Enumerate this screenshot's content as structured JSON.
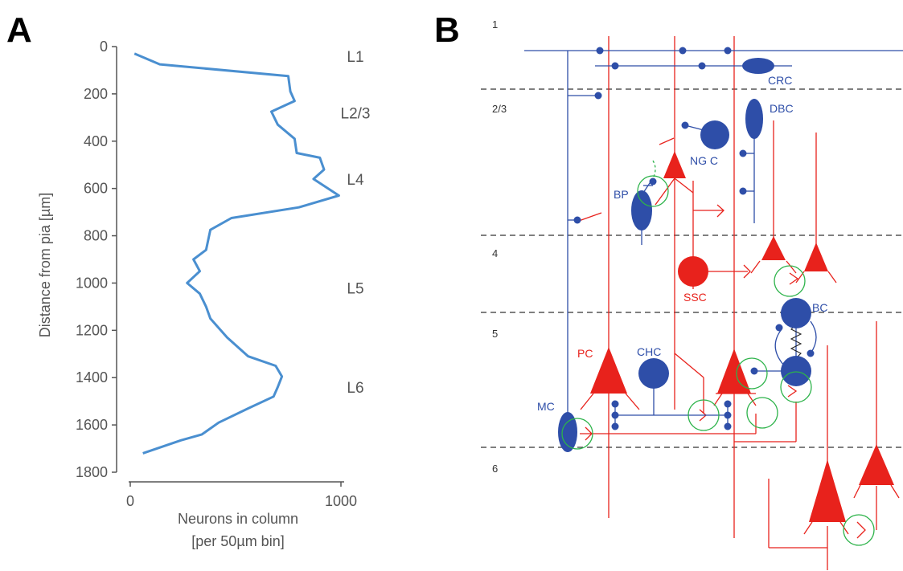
{
  "panel_a": {
    "letter": "A",
    "ylabel": "Distance from pia [µm]",
    "xlabel_line1": "Neurons in column",
    "xlabel_line2": "[per 50µm bin]",
    "layer_labels": [
      {
        "text": "L1",
        "depth": 40
      },
      {
        "text": "L2/3",
        "depth": 280
      },
      {
        "text": "L4",
        "depth": 560
      },
      {
        "text": "L5",
        "depth": 1020
      },
      {
        "text": "L6",
        "depth": 1440
      }
    ],
    "line_color": "#4a8fd0"
  },
  "chart_data": {
    "type": "line",
    "orientation": "vertical",
    "title": "",
    "xlabel": "Neurons in column [per 50µm bin]",
    "ylabel": "Distance from pia [µm]",
    "xlim": [
      0,
      1000
    ],
    "ylim": [
      1800,
      0
    ],
    "x_ticks": [
      0,
      1000
    ],
    "y_ticks": [
      0,
      200,
      400,
      600,
      800,
      1000,
      1200,
      1400,
      1600,
      1800
    ],
    "series": [
      {
        "color": "#4a8fd0",
        "neurons": [
          20,
          140,
          750,
          760,
          780,
          670,
          700,
          780,
          790,
          900,
          920,
          870,
          990,
          800,
          480,
          380,
          360,
          300,
          330,
          270,
          330,
          360,
          380,
          460,
          560,
          690,
          720,
          700,
          680,
          560,
          420,
          340,
          240,
          60
        ],
        "depth": [
          30,
          75,
          125,
          190,
          230,
          275,
          330,
          390,
          450,
          470,
          520,
          560,
          630,
          680,
          725,
          775,
          860,
          900,
          950,
          1000,
          1045,
          1100,
          1150,
          1230,
          1310,
          1350,
          1395,
          1440,
          1480,
          1530,
          1590,
          1640,
          1665,
          1720
        ]
      }
    ]
  },
  "panel_b": {
    "letter": "B",
    "layer_numbers": [
      "1",
      "2/3",
      "4",
      "5",
      "6"
    ],
    "cell_labels": {
      "crc": "CRC",
      "dbc": "DBC",
      "ngc": "NG C",
      "bp": "BP",
      "ssc": "SSC",
      "bc": "BC",
      "pc": "PC",
      "chc": "CHC",
      "mc": "MC"
    },
    "colors": {
      "inhibitory_blue": "#2e4ea8",
      "excitatory_red": "#e8221c",
      "synapse_green": "#2db34a",
      "boundary_gray": "#333333"
    }
  }
}
